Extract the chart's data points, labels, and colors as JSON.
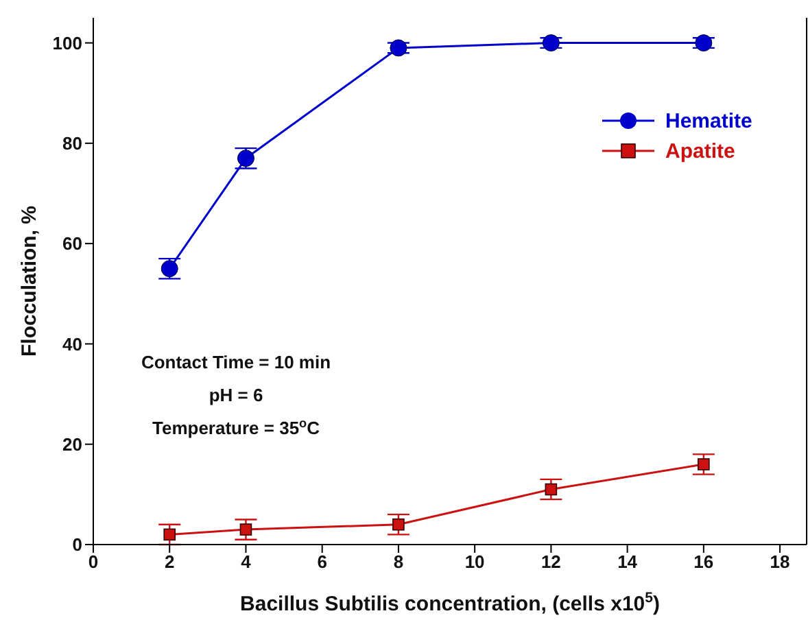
{
  "chart_data": {
    "type": "line",
    "xlabel": "Bacillus Subtilis concentration, (cells x10$^{5}$)",
    "ylabel": "Flocculation, %",
    "x": [
      2,
      4,
      8,
      12,
      16
    ],
    "series": [
      {
        "name": "Hematite",
        "color": "#0000cc",
        "marker": "circle",
        "values": [
          55,
          77,
          99,
          100,
          100
        ],
        "errors": [
          2,
          2,
          1,
          1,
          1
        ]
      },
      {
        "name": "Apatite",
        "color": "#cc1111",
        "marker": "square",
        "values": [
          2,
          3,
          4,
          11,
          16
        ],
        "errors": [
          2,
          2,
          2,
          2,
          2
        ]
      }
    ],
    "xlim": [
      0,
      18.7
    ],
    "xticks": [
      0,
      2,
      4,
      6,
      8,
      10,
      12,
      14,
      16,
      18
    ],
    "ylim": [
      0,
      105
    ],
    "yticks": [
      0,
      20,
      40,
      60,
      80,
      100
    ],
    "legend": "top right",
    "grid": false,
    "annotations": [
      "Contact Time = 10 min",
      "pH = 6",
      "Temperature = 35$^{o}$C"
    ]
  }
}
